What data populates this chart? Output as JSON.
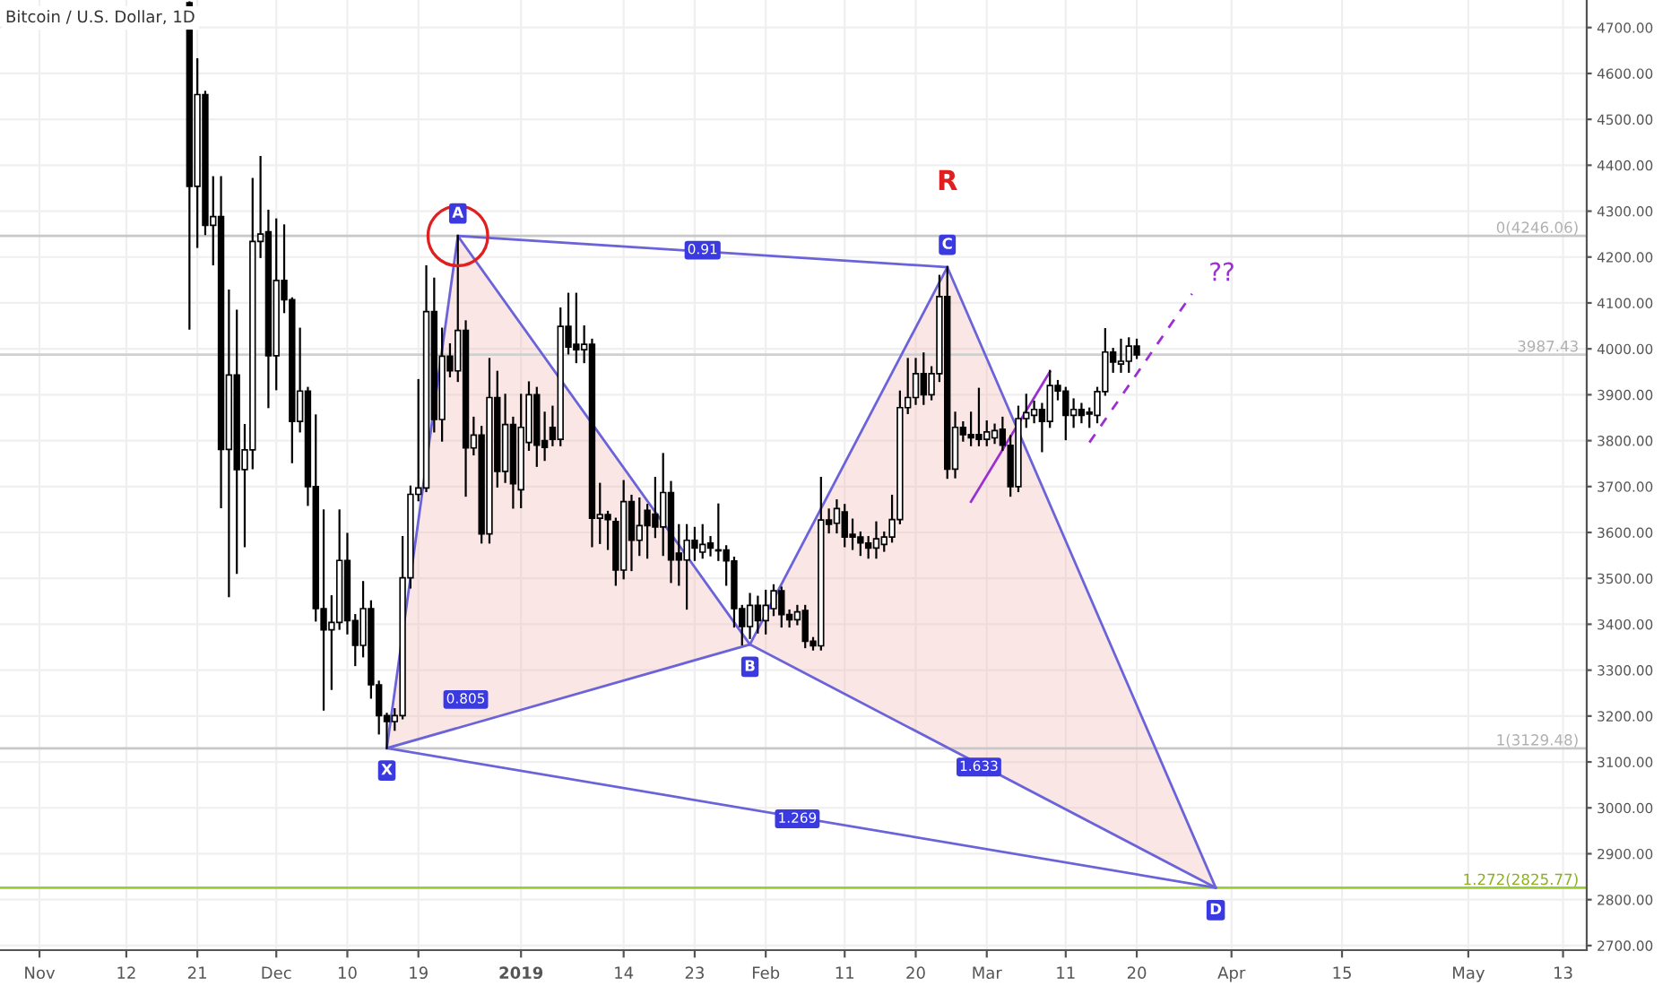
{
  "chart_data": {
    "type": "candlestick",
    "title": "Bitcoin / U.S. Dollar, 1D",
    "x": [
      "2018-11-20",
      "2018-11-21",
      "2018-11-22",
      "2018-11-23",
      "2018-11-24",
      "2018-11-25",
      "2018-11-26",
      "2018-11-27",
      "2018-11-28",
      "2018-11-29",
      "2018-11-30",
      "2018-12-01",
      "2018-12-02",
      "2018-12-03",
      "2018-12-04",
      "2018-12-05",
      "2018-12-06",
      "2018-12-07",
      "2018-12-08",
      "2018-12-09",
      "2018-12-10",
      "2018-12-11",
      "2018-12-12",
      "2018-12-13",
      "2018-12-14",
      "2018-12-15",
      "2018-12-16",
      "2018-12-17",
      "2018-12-18",
      "2018-12-19",
      "2018-12-20",
      "2018-12-21",
      "2018-12-22",
      "2018-12-23",
      "2018-12-24",
      "2018-12-25",
      "2018-12-26",
      "2018-12-27",
      "2018-12-28",
      "2018-12-29",
      "2018-12-30",
      "2018-12-31",
      "2019-01-01",
      "2019-01-02",
      "2019-01-03",
      "2019-01-04",
      "2019-01-05",
      "2019-01-06",
      "2019-01-07",
      "2019-01-08",
      "2019-01-09",
      "2019-01-10",
      "2019-01-11",
      "2019-01-12",
      "2019-01-13",
      "2019-01-14",
      "2019-01-15",
      "2019-01-16",
      "2019-01-17",
      "2019-01-18",
      "2019-01-19",
      "2019-01-20",
      "2019-01-21",
      "2019-01-22",
      "2019-01-23",
      "2019-01-24",
      "2019-01-25",
      "2019-01-26",
      "2019-01-27",
      "2019-01-28",
      "2019-01-29",
      "2019-01-30",
      "2019-01-31",
      "2019-02-01",
      "2019-02-02",
      "2019-02-03",
      "2019-02-04",
      "2019-02-05",
      "2019-02-06",
      "2019-02-07",
      "2019-02-08",
      "2019-02-09",
      "2019-02-10",
      "2019-02-11",
      "2019-02-12",
      "2019-02-13",
      "2019-02-14",
      "2019-02-15",
      "2019-02-16",
      "2019-02-17",
      "2019-02-18",
      "2019-02-19",
      "2019-02-20",
      "2019-02-21",
      "2019-02-22",
      "2019-02-23",
      "2019-02-24",
      "2019-02-25",
      "2019-02-26",
      "2019-02-27",
      "2019-02-28",
      "2019-03-01",
      "2019-03-02",
      "2019-03-03",
      "2019-03-04",
      "2019-03-05",
      "2019-03-06",
      "2019-03-07",
      "2019-03-08",
      "2019-03-09",
      "2019-03-10",
      "2019-03-11",
      "2019-03-12",
      "2019-03-13",
      "2019-03-14",
      "2019-03-15",
      "2019-03-16",
      "2019-03-17",
      "2019-03-18",
      "2019-03-19",
      "2019-03-20"
    ],
    "ohlc": [
      [
        4754,
        4755,
        4044,
        4354
      ],
      [
        4354,
        4631,
        4222,
        4554
      ],
      [
        4554,
        4560,
        4250,
        4269
      ],
      [
        4269,
        4374,
        4184,
        4288
      ],
      [
        4288,
        4374,
        3655,
        3781
      ],
      [
        3781,
        4127,
        3461,
        3943
      ],
      [
        3943,
        4083,
        3512,
        3737
      ],
      [
        3737,
        3834,
        3570,
        3780
      ],
      [
        3780,
        4370,
        3740,
        4234
      ],
      [
        4234,
        4418,
        4200,
        4250
      ],
      [
        4255,
        4301,
        3873,
        3985
      ],
      [
        3985,
        4282,
        3912,
        4149
      ],
      [
        4149,
        4269,
        4080,
        4107
      ],
      [
        4107,
        4110,
        3753,
        3842
      ],
      [
        3842,
        4044,
        3820,
        3908
      ],
      [
        3908,
        3915,
        3660,
        3700
      ],
      [
        3700,
        3855,
        3408,
        3434
      ],
      [
        3434,
        3648,
        3214,
        3388
      ],
      [
        3388,
        3461,
        3259,
        3404
      ],
      [
        3404,
        3648,
        3390,
        3539
      ],
      [
        3539,
        3597,
        3380,
        3408
      ],
      [
        3408,
        3420,
        3311,
        3354
      ],
      [
        3354,
        3492,
        3330,
        3434
      ],
      [
        3434,
        3450,
        3240,
        3268
      ],
      [
        3268,
        3275,
        3162,
        3201
      ],
      [
        3201,
        3205,
        3130,
        3188
      ],
      [
        3188,
        3215,
        3170,
        3201
      ],
      [
        3201,
        3590,
        3195,
        3501
      ],
      [
        3501,
        3700,
        3480,
        3683
      ],
      [
        3683,
        3932,
        3670,
        3697
      ],
      [
        3697,
        4180,
        3690,
        4081
      ],
      [
        4081,
        4153,
        3820,
        3846
      ],
      [
        3846,
        4044,
        3800,
        3984
      ],
      [
        3984,
        4010,
        3940,
        3952
      ],
      [
        3952,
        4246,
        3930,
        4040
      ],
      [
        4040,
        4060,
        3680,
        3784
      ],
      [
        3784,
        3850,
        3770,
        3812
      ],
      [
        3812,
        3830,
        3578,
        3597
      ],
      [
        3597,
        3978,
        3578,
        3894
      ],
      [
        3894,
        3950,
        3700,
        3733
      ],
      [
        3733,
        3900,
        3710,
        3835
      ],
      [
        3835,
        3850,
        3654,
        3706
      ],
      [
        3693,
        3900,
        3655,
        3829
      ],
      [
        3796,
        3927,
        3780,
        3900
      ],
      [
        3900,
        3915,
        3745,
        3790
      ],
      [
        3800,
        3861,
        3758,
        3785
      ],
      [
        3829,
        3874,
        3790,
        3803
      ],
      [
        3803,
        4088,
        3790,
        4049
      ],
      [
        4049,
        4120,
        3990,
        4004
      ],
      [
        4010,
        4120,
        3971,
        3998
      ],
      [
        3998,
        4049,
        3971,
        4010
      ],
      [
        4010,
        4020,
        3570,
        3631
      ],
      [
        3631,
        3706,
        3577,
        3639
      ],
      [
        3639,
        3645,
        3564,
        3628
      ],
      [
        3624,
        3630,
        3486,
        3518
      ],
      [
        3518,
        3712,
        3500,
        3667
      ],
      [
        3667,
        3680,
        3518,
        3583
      ],
      [
        3583,
        3674,
        3551,
        3615
      ],
      [
        3648,
        3660,
        3545,
        3615
      ],
      [
        3640,
        3719,
        3590,
        3612
      ],
      [
        3612,
        3771,
        3551,
        3687
      ],
      [
        3687,
        3710,
        3492,
        3540
      ],
      [
        3555,
        3616,
        3486,
        3540
      ],
      [
        3540,
        3616,
        3434,
        3583
      ],
      [
        3583,
        3610,
        3540,
        3566
      ],
      [
        3557,
        3616,
        3545,
        3574
      ],
      [
        3577,
        3590,
        3550,
        3566
      ],
      [
        3562,
        3661,
        3540,
        3560
      ],
      [
        3562,
        3570,
        3486,
        3538
      ],
      [
        3538,
        3545,
        3395,
        3434
      ],
      [
        3434,
        3440,
        3356,
        3395
      ],
      [
        3395,
        3466,
        3370,
        3441
      ],
      [
        3441,
        3460,
        3382,
        3408
      ],
      [
        3408,
        3473,
        3380,
        3441
      ],
      [
        3434,
        3485,
        3420,
        3473
      ],
      [
        3473,
        3480,
        3395,
        3421
      ],
      [
        3421,
        3430,
        3395,
        3410
      ],
      [
        3410,
        3440,
        3400,
        3427
      ],
      [
        3430,
        3440,
        3350,
        3363
      ],
      [
        3363,
        3370,
        3345,
        3353
      ],
      [
        3353,
        3719,
        3345,
        3627
      ],
      [
        3627,
        3650,
        3600,
        3618
      ],
      [
        3620,
        3670,
        3600,
        3652
      ],
      [
        3645,
        3660,
        3570,
        3590
      ],
      [
        3596,
        3628,
        3564,
        3590
      ],
      [
        3590,
        3600,
        3551,
        3577
      ],
      [
        3577,
        3590,
        3545,
        3566
      ],
      [
        3566,
        3622,
        3545,
        3586
      ],
      [
        3574,
        3600,
        3560,
        3590
      ],
      [
        3590,
        3680,
        3580,
        3628
      ],
      [
        3628,
        3907,
        3620,
        3872
      ],
      [
        3872,
        3978,
        3860,
        3894
      ],
      [
        3894,
        3978,
        3880,
        3946
      ],
      [
        3946,
        3990,
        3880,
        3900
      ],
      [
        3900,
        3960,
        3890,
        3946
      ],
      [
        3946,
        4159,
        3930,
        4114
      ],
      [
        4114,
        4178,
        3719,
        3738
      ],
      [
        3738,
        3861,
        3720,
        3829
      ],
      [
        3829,
        3840,
        3800,
        3813
      ],
      [
        3813,
        3861,
        3790,
        3806
      ],
      [
        3813,
        3913,
        3790,
        3803
      ],
      [
        3803,
        3842,
        3790,
        3819
      ],
      [
        3806,
        3835,
        3795,
        3822
      ],
      [
        3825,
        3850,
        3780,
        3790
      ],
      [
        3790,
        3810,
        3680,
        3700
      ],
      [
        3700,
        3874,
        3690,
        3848
      ],
      [
        3848,
        3900,
        3830,
        3861
      ],
      [
        3855,
        3885,
        3840,
        3868
      ],
      [
        3868,
        3880,
        3777,
        3842
      ],
      [
        3842,
        3952,
        3830,
        3920
      ],
      [
        3920,
        3930,
        3890,
        3908
      ],
      [
        3908,
        3915,
        3803,
        3855
      ],
      [
        3855,
        3890,
        3830,
        3868
      ],
      [
        3868,
        3880,
        3840,
        3855
      ],
      [
        3862,
        3870,
        3830,
        3858
      ],
      [
        3855,
        3915,
        3840,
        3907
      ],
      [
        3907,
        4043,
        3900,
        3993
      ],
      [
        3993,
        4000,
        3950,
        3971
      ],
      [
        3967,
        4020,
        3950,
        3973
      ],
      [
        3973,
        4023,
        3950,
        4006
      ],
      [
        4006,
        4020,
        3980,
        3987
      ]
    ],
    "series": [
      {
        "type": "line",
        "color": "#6a63d9",
        "x": [
          "2018-12-15",
          "2018-12-24"
        ],
        "values": [
          3130,
          4246
        ]
      },
      {
        "type": "line",
        "color": "#6a63d9",
        "x": [
          "2018-12-24",
          "2019-01-30"
        ],
        "values": [
          4246,
          3356
        ]
      },
      {
        "type": "line",
        "color": "#6a63d9",
        "x": [
          "2019-01-30",
          "2019-02-24"
        ],
        "values": [
          3356,
          4178
        ]
      },
      {
        "type": "line",
        "color": "#6a63d9",
        "x": [
          "2019-02-24",
          "2019-03-30"
        ],
        "values": [
          4178,
          2826
        ]
      },
      {
        "type": "line",
        "color": "#6a63d9",
        "x": [
          "2018-12-15",
          "2019-01-30"
        ],
        "values": [
          3130,
          3356
        ]
      },
      {
        "type": "line",
        "color": "#6a63d9",
        "x": [
          "2019-01-30",
          "2019-03-30"
        ],
        "values": [
          3356,
          2826
        ]
      },
      {
        "type": "line",
        "color": "#6a63d9",
        "x": [
          "2018-12-15",
          "2019-03-30"
        ],
        "values": [
          3130,
          2826
        ]
      },
      {
        "type": "line",
        "color": "#6a63d9",
        "x": [
          "2018-12-24",
          "2019-02-24"
        ],
        "values": [
          4246,
          4178
        ]
      },
      {
        "type": "line",
        "color": "#9b30d0",
        "x": [
          "2019-02-27",
          "2019-03-09"
        ],
        "values": [
          3667,
          3950
        ]
      },
      {
        "type": "line",
        "color": "#9b30d0",
        "line_style": "dashed",
        "x": [
          "2019-03-14",
          "2019-03-27"
        ],
        "values": [
          3796,
          4120
        ]
      }
    ],
    "annotations": [
      {
        "text": "X",
        "x": "2018-12-15",
        "y": 3130
      },
      {
        "text": "A",
        "x": "2018-12-24",
        "y": 4246
      },
      {
        "text": "B",
        "x": "2019-01-30",
        "y": 3356
      },
      {
        "text": "C",
        "x": "2019-02-24",
        "y": 4178
      },
      {
        "text": "D",
        "x": "2019-03-30",
        "y": 2826
      },
      {
        "text": "0.91",
        "x": "2019-01-24",
        "y": 4215
      },
      {
        "text": "0.805",
        "x": "2018-12-25",
        "y": 3236
      },
      {
        "text": "1.633",
        "x": "2019-02-28",
        "y": 3089
      },
      {
        "text": "1.269",
        "x": "2019-02-05",
        "y": 2976
      },
      "R",
      "??"
    ],
    "ref_lines": [
      {
        "axis": "y",
        "value": 4246.06,
        "label": "0(4246.06)",
        "color": "#c8c8c8"
      },
      {
        "axis": "y",
        "value": 3129.48,
        "label": "1(3129.48)",
        "color": "#c8c8c8"
      },
      {
        "axis": "y",
        "value": 2825.77,
        "label": "1.272(2825.77)",
        "color": "#9acd32"
      },
      {
        "axis": "y",
        "value": 3987.43,
        "label": "3987.43",
        "color": "#d0d0d0"
      }
    ],
    "xlim": [
      "2018-10-27",
      "2019-05-16"
    ],
    "xticks": [
      {
        "value": "2018-11-01",
        "label": "Nov"
      },
      {
        "value": "2018-11-12",
        "label": "12"
      },
      {
        "value": "2018-11-21",
        "label": "21"
      },
      {
        "value": "2018-12-01",
        "label": "Dec"
      },
      {
        "value": "2018-12-10",
        "label": "10"
      },
      {
        "value": "2018-12-19",
        "label": "19"
      },
      {
        "value": "2019-01-01",
        "label": "2019"
      },
      {
        "value": "2019-01-14",
        "label": "14"
      },
      {
        "value": "2019-01-23",
        "label": "23"
      },
      {
        "value": "2019-02-01",
        "label": "Feb"
      },
      {
        "value": "2019-02-11",
        "label": "11"
      },
      {
        "value": "2019-02-20",
        "label": "20"
      },
      {
        "value": "2019-03-01",
        "label": "Mar"
      },
      {
        "value": "2019-03-11",
        "label": "11"
      },
      {
        "value": "2019-03-20",
        "label": "20"
      },
      {
        "value": "2019-04-01",
        "label": "Apr"
      },
      {
        "value": "2019-04-15",
        "label": "15"
      },
      {
        "value": "2019-05-01",
        "label": "May"
      },
      {
        "value": "2019-05-13",
        "label": "13"
      }
    ],
    "ylim": [
      2690,
      4760
    ],
    "yticks": [
      {
        "value": 2700,
        "label": "2700.00"
      },
      {
        "value": 2800,
        "label": "2800.00"
      },
      {
        "value": 2900,
        "label": "2900.00"
      },
      {
        "value": 3000,
        "label": "3000.00"
      },
      {
        "value": 3100,
        "label": "3100.00"
      },
      {
        "value": 3200,
        "label": "3200.00"
      },
      {
        "value": 3300,
        "label": "3300.00"
      },
      {
        "value": 3400,
        "label": "3400.00"
      },
      {
        "value": 3500,
        "label": "3500.00"
      },
      {
        "value": 3600,
        "label": "3600.00"
      },
      {
        "value": 3700,
        "label": "3700.00"
      },
      {
        "value": 3800,
        "label": "3800.00"
      },
      {
        "value": 3900,
        "label": "3900.00"
      },
      {
        "value": 4000,
        "label": "4000.00"
      },
      {
        "value": 4100,
        "label": "4100.00"
      },
      {
        "value": 4200,
        "label": "4200.00"
      },
      {
        "value": 4300,
        "label": "4300.00"
      },
      {
        "value": 4400,
        "label": "4400.00"
      },
      {
        "value": 4500,
        "label": "4500.00"
      },
      {
        "value": 4600,
        "label": "4600.00"
      },
      {
        "value": 4700,
        "label": "4700.00"
      }
    ],
    "grid": true
  }
}
